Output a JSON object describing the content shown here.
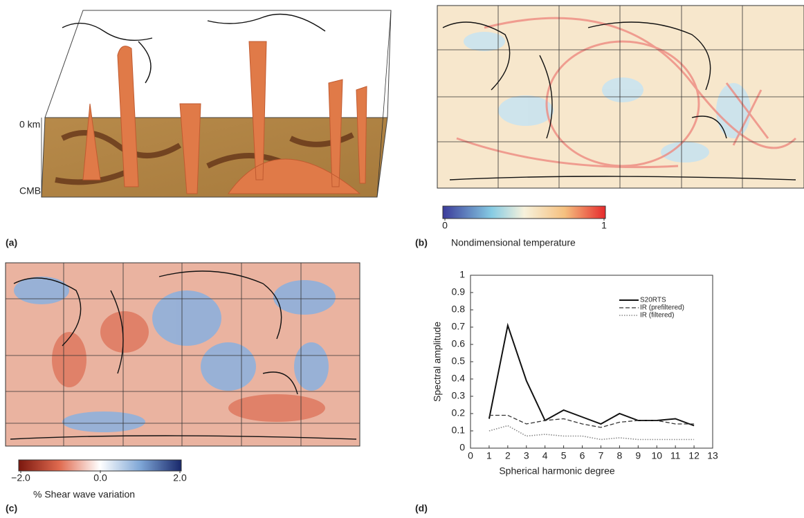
{
  "panels": {
    "a": {
      "label": "(a)",
      "depth_top": "0 km",
      "depth_bottom": "CMB"
    },
    "b": {
      "label": "(b)",
      "colorbar": {
        "lim": [
          0,
          1
        ],
        "ticks": [
          0,
          1
        ],
        "title": "Nondimensional temperature"
      }
    },
    "c": {
      "label": "(c)",
      "colorbar": {
        "lim": [
          -2,
          2
        ],
        "ticks": [
          {
            "value": -2,
            "label": "−2.0"
          },
          {
            "value": 0,
            "label": "0.0"
          },
          {
            "value": 2,
            "label": "2.0"
          }
        ],
        "title": "% Shear wave variation"
      }
    },
    "d": {
      "label": "(d)"
    }
  },
  "chart_data": {
    "type": "line",
    "x_label": "Spherical harmonic degree",
    "y_label": "Spectral amplitude",
    "x": [
      1,
      2,
      3,
      4,
      5,
      6,
      7,
      8,
      9,
      10,
      11,
      12
    ],
    "series": [
      {
        "name": "S20RTS",
        "color": "#111111",
        "line_style": "solid",
        "values": [
          0.17,
          0.71,
          0.39,
          0.16,
          0.22,
          0.18,
          0.14,
          0.2,
          0.16,
          0.16,
          0.17,
          0.13
        ]
      },
      {
        "name": "IR (prefiltered)",
        "color": "#333333",
        "line_style": "dashed",
        "values": [
          0.19,
          0.19,
          0.14,
          0.16,
          0.17,
          0.14,
          0.12,
          0.15,
          0.16,
          0.16,
          0.14,
          0.14
        ]
      },
      {
        "name": "IR (filtered)",
        "color": "#888888",
        "line_style": "dotted",
        "values": [
          0.1,
          0.13,
          0.07,
          0.08,
          0.07,
          0.07,
          0.05,
          0.06,
          0.05,
          0.05,
          0.05,
          0.05
        ]
      }
    ],
    "xlim": [
      0,
      13
    ],
    "xticks": [
      0,
      1,
      2,
      3,
      4,
      5,
      6,
      7,
      8,
      9,
      10,
      11,
      12,
      13
    ],
    "ylim": [
      0,
      1
    ],
    "yticks": [
      0,
      0.1,
      0.2,
      0.3,
      0.4,
      0.5,
      0.6,
      0.7,
      0.8,
      0.9,
      1
    ],
    "legend": "upper right"
  }
}
